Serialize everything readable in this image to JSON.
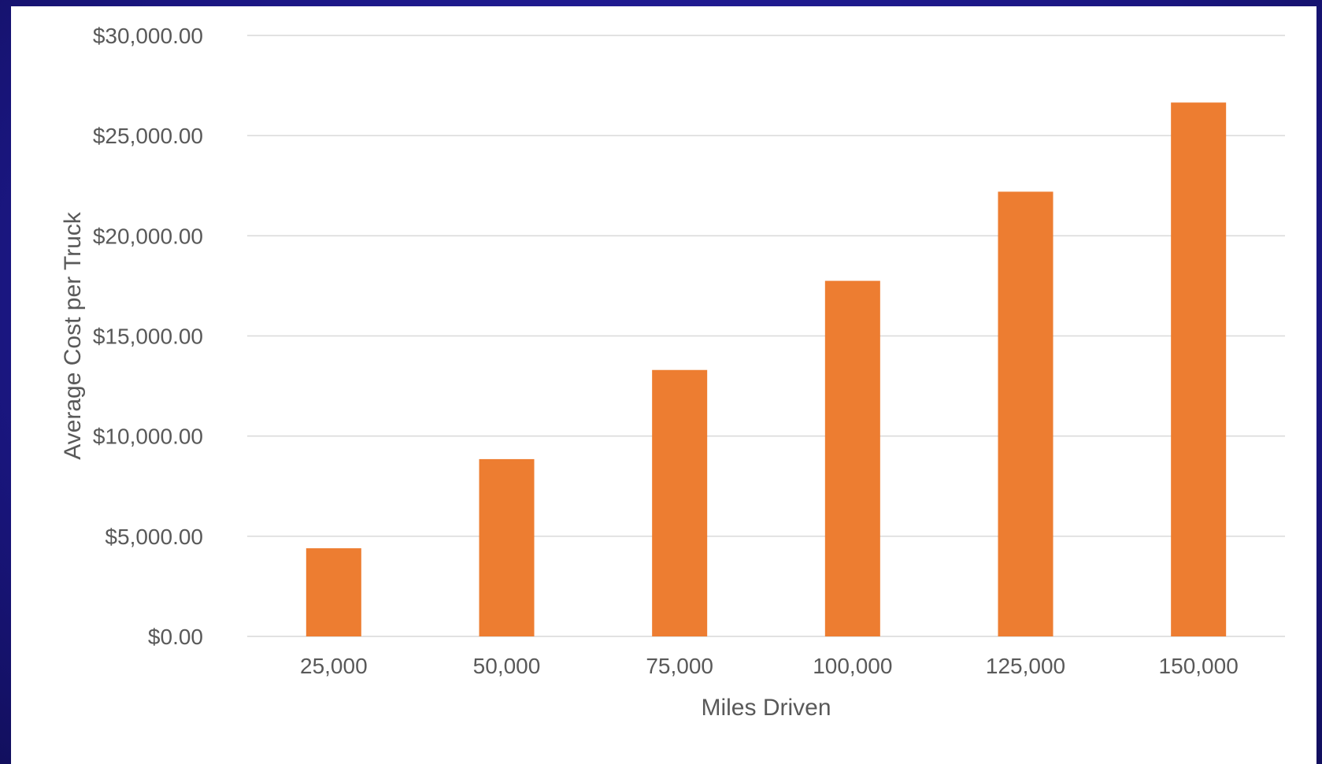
{
  "chart_data": {
    "type": "bar",
    "title": "",
    "xlabel": "Miles Driven",
    "ylabel": "Average Cost per Truck",
    "categories": [
      "25,000",
      "50,000",
      "75,000",
      "100,000",
      "125,000",
      "150,000"
    ],
    "series": [
      {
        "values": [
          4400,
          8850,
          13300,
          17750,
          22200,
          26650
        ]
      }
    ],
    "ylim": [
      0,
      30000
    ],
    "yticks": [
      0,
      5000,
      10000,
      15000,
      20000,
      25000,
      30000
    ],
    "ytick_labels": [
      "$0.00",
      "$5,000.00",
      "$10,000.00",
      "$15,000.00",
      "$20,000.00",
      "$25,000.00",
      "$30,000.00"
    ],
    "grid": true,
    "legend": "none",
    "bar_color": "#ed7d31"
  }
}
